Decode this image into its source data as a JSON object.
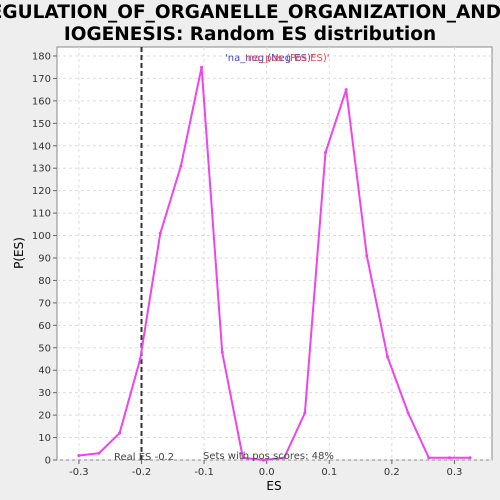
{
  "chart_data": {
    "type": "line",
    "title_line1": "REGULATION_OF_ORGANELLE_ORGANIZATION_AND_B",
    "title_line2": "IOGENESIS: Random ES distribution",
    "xlabel": "ES",
    "ylabel": "P(ES)",
    "xlim": [
      -0.335,
      0.36
    ],
    "ylim": [
      0,
      184
    ],
    "x_ticks": [
      -0.3,
      -0.2,
      -0.1,
      0.0,
      0.1,
      0.2,
      0.3
    ],
    "y_ticks": [
      0,
      10,
      20,
      30,
      40,
      50,
      60,
      70,
      80,
      90,
      100,
      110,
      120,
      130,
      140,
      150,
      160,
      170,
      180
    ],
    "grid": true,
    "series": [
      {
        "color": "#ee44ee",
        "x": [
          -0.3,
          -0.268,
          -0.235,
          -0.202,
          -0.17,
          -0.137,
          -0.104,
          -0.071,
          -0.038,
          -0.005,
          0.028,
          0.061,
          0.094,
          0.127,
          0.16,
          0.193,
          0.226,
          0.259,
          0.292,
          0.325
        ],
        "y": [
          2,
          3,
          12,
          45,
          101,
          131,
          175,
          48,
          1,
          0,
          1,
          21,
          137,
          165,
          91,
          46,
          21,
          1,
          1,
          1
        ]
      }
    ],
    "real_es": -0.2,
    "real_es_label": "Real ES -0.2",
    "pos_scores_label": "Sets with pos scores: 48%",
    "legend_items": [
      {
        "text": "'na_neg (Neg ES)'",
        "color": "#4444cc"
      },
      {
        "text": "'na_pos (Pos ES)'",
        "color": "#ee4444"
      }
    ]
  }
}
